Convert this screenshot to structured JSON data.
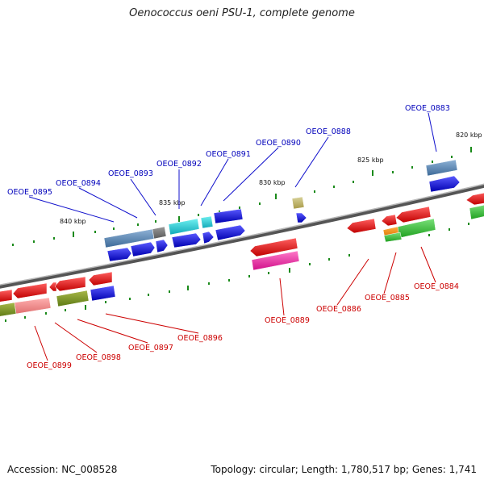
{
  "title": "Oenococcus oeni PSU-1, complete genome",
  "footer": {
    "accession": "Accession: NC_008528",
    "stats": "Topology: circular; Length: 1,780,517 bp; Genes: 1,741"
  },
  "ticks": [
    {
      "label": "820 kbp"
    },
    {
      "label": "825 kbp"
    },
    {
      "label": "830 kbp"
    },
    {
      "label": "835 kbp"
    },
    {
      "label": "840 kbp"
    }
  ],
  "genes_top": [
    {
      "label": "OEOE_0883"
    },
    {
      "label": "OEOE_0888"
    },
    {
      "label": "OEOE_0890"
    },
    {
      "label": "OEOE_0891"
    },
    {
      "label": "OEOE_0892"
    },
    {
      "label": "OEOE_0893"
    },
    {
      "label": "OEOE_0894"
    },
    {
      "label": "OEOE_0895"
    }
  ],
  "genes_bottom": [
    {
      "label": "OEOE_0884"
    },
    {
      "label": "OEOE_0885"
    },
    {
      "label": "OEOE_0886"
    },
    {
      "label": "OEOE_0889"
    },
    {
      "label": "OEOE_0896"
    },
    {
      "label": "OEOE_0897"
    },
    {
      "label": "OEOE_0898"
    },
    {
      "label": "OEOE_0899"
    }
  ],
  "colors": {
    "forward_cds": "#0000ee",
    "reverse_cds": "#ee0000",
    "forward_label": "#0000bb",
    "reverse_label": "#cc0000",
    "backbone": "#7a7a7a",
    "tick": "#1a8a1a"
  }
}
